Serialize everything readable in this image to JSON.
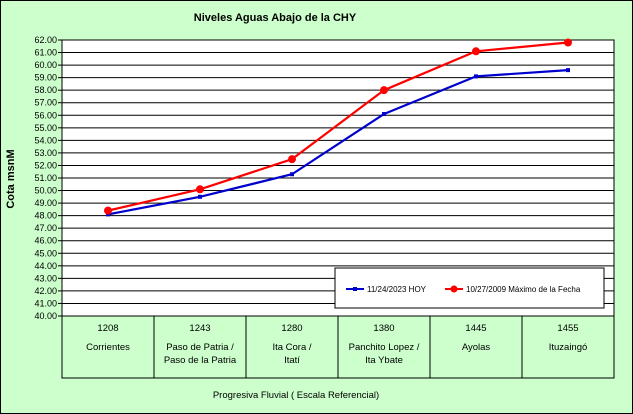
{
  "chart_data": {
    "type": "line",
    "title": "Niveles Aguas Abajo de la CHY",
    "ylabel": "Cota msnM",
    "xlabel": "Progresiva Fluvial ( Escala Referencial)",
    "ylim": [
      40.0,
      62.0
    ],
    "ytick_step": 1.0,
    "categories": [
      {
        "code": "1208",
        "name": "Corrientes"
      },
      {
        "code": "1243",
        "name": "Paso de Patria / Paso de la Patria"
      },
      {
        "code": "1280",
        "name": "Ita Cora / Itatí"
      },
      {
        "code": "1380",
        "name": "Panchito Lopez / Ita Ybate"
      },
      {
        "code": "1445",
        "name": "Ayolas"
      },
      {
        "code": "1455",
        "name": "Ituzaingó"
      }
    ],
    "series": [
      {
        "name": "11/24/2023 HOY",
        "color": "#0000cc",
        "marker": "square",
        "values": [
          48.1,
          49.5,
          51.3,
          56.1,
          59.1,
          59.6
        ]
      },
      {
        "name": "10/27/2009 Máximo de la Fecha",
        "color": "#ff0000",
        "marker": "circle",
        "values": [
          48.4,
          50.1,
          52.5,
          58.0,
          61.1,
          61.8
        ]
      }
    ],
    "grid": true,
    "legend_position": "bottom-right inside plot"
  }
}
